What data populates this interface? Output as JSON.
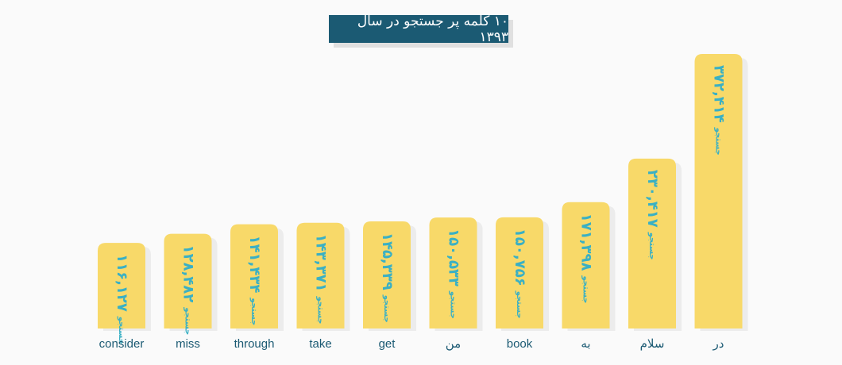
{
  "title": "۱۰ کلمه پر جستجو در سال ۱۳۹۳",
  "unit_label": "جستجو",
  "colors": {
    "bar": "#f8d969",
    "bar_shadow": "#ececec",
    "label": "#3ab0c4",
    "title_bg": "#1b5a73",
    "category": "#1b5a73"
  },
  "chart_data": {
    "type": "bar",
    "title": "۱۰ کلمه پر جستجو در سال ۱۳۹۳",
    "categories": [
      "consider",
      "miss",
      "through",
      "take",
      "get",
      "من",
      "book",
      "به",
      "سلام",
      "در"
    ],
    "values": [
      116127,
      128482,
      141434,
      143371,
      145339,
      150533,
      150756,
      171398,
      230417,
      372414
    ],
    "value_labels": [
      "۱۱۶,۱۲۷",
      "۱۲۸,۴۸۲",
      "۱۴۱,۴۳۴",
      "۱۴۳,۳۷۱",
      "۱۴۵,۳۳۹",
      "۱۵۰,۵۳۳",
      "۱۵۰,۷۵۶",
      "۱۷۱,۳۹۸",
      "۲۳۰,۴۱۷",
      "۳۷۲,۴۱۴"
    ],
    "ylim": [
      0,
      380000
    ],
    "grid": false,
    "legend": "none"
  }
}
